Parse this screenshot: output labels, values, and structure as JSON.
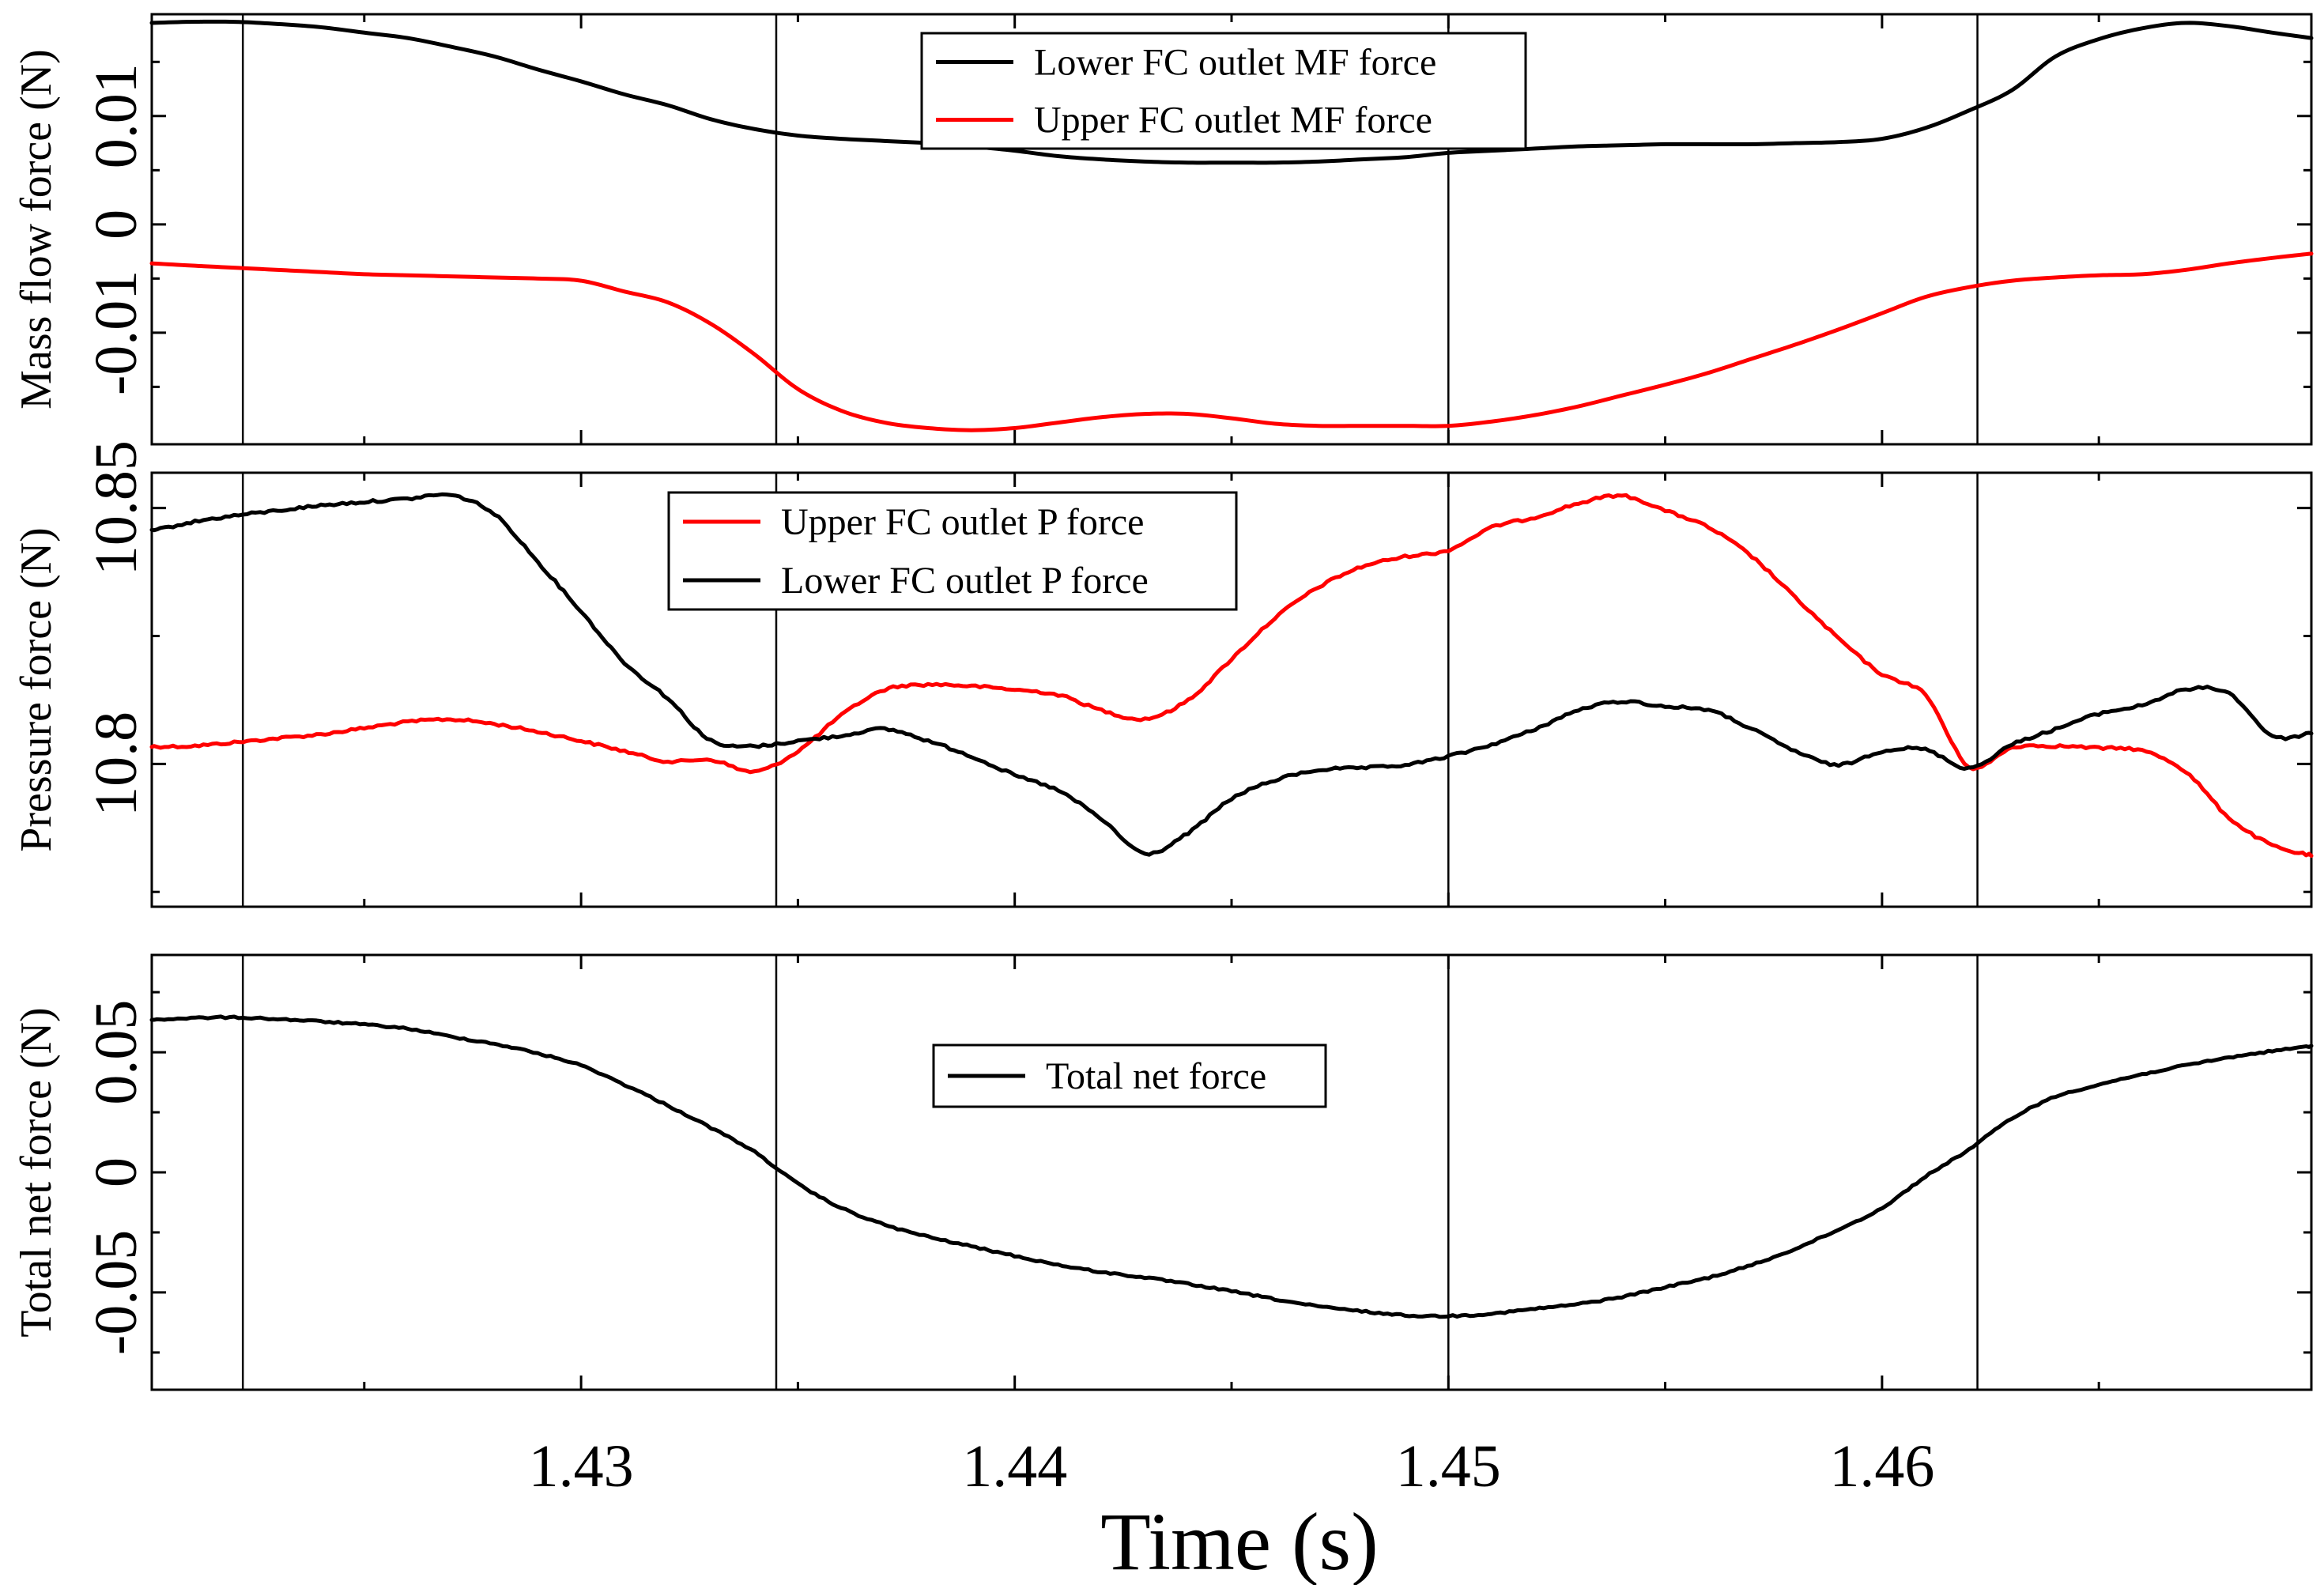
{
  "chart_data": {
    "type": "line",
    "xlabel": "Time (s)",
    "xlim": [
      1.4201,
      1.4699
    ],
    "xticks_major": [
      1.43,
      1.44,
      1.45,
      1.46
    ],
    "xtick_labels": [
      "1.43",
      "1.44",
      "1.45",
      "1.46"
    ],
    "xticks_minor": [
      1.425,
      1.435,
      1.445,
      1.455,
      1.465
    ],
    "event_lines_x": [
      1.4222,
      1.4345,
      1.45,
      1.4622
    ],
    "colors": {
      "black": "#000000",
      "red": "#ff0000"
    },
    "panels": [
      {
        "id": "mass-flow",
        "ylabel": "Mass flow force (N)",
        "ylim": [
          -0.0203,
          0.0194
        ],
        "yticks_major": [
          -0.01,
          0,
          0.01
        ],
        "ytick_labels": [
          "-0.01",
          "0",
          "0.01"
        ],
        "yticks_minor": [
          -0.015,
          -0.005,
          0.005,
          0.015
        ],
        "legend": {
          "position": "top-center"
        },
        "series": [
          {
            "name": "Lower FC outlet MF force",
            "color": "#000000",
            "x": [
              1.4201,
              1.421,
              1.422,
              1.423,
              1.424,
              1.425,
              1.426,
              1.427,
              1.428,
              1.429,
              1.43,
              1.431,
              1.432,
              1.433,
              1.434,
              1.435,
              1.436,
              1.437,
              1.438,
              1.439,
              1.44,
              1.441,
              1.442,
              1.443,
              1.444,
              1.445,
              1.446,
              1.447,
              1.448,
              1.449,
              1.45,
              1.451,
              1.452,
              1.453,
              1.454,
              1.455,
              1.456,
              1.457,
              1.458,
              1.459,
              1.46,
              1.461,
              1.462,
              1.463,
              1.464,
              1.465,
              1.466,
              1.467,
              1.468,
              1.469,
              1.4699
            ],
            "y": [
              0.0186,
              0.0187,
              0.0187,
              0.0185,
              0.0182,
              0.0177,
              0.0172,
              0.0164,
              0.0155,
              0.0143,
              0.0132,
              0.012,
              0.011,
              0.0097,
              0.0088,
              0.0082,
              0.0079,
              0.0077,
              0.0075,
              0.0072,
              0.0068,
              0.0063,
              0.006,
              0.0058,
              0.0057,
              0.0057,
              0.0057,
              0.0058,
              0.006,
              0.0062,
              0.0066,
              0.0068,
              0.007,
              0.0072,
              0.0073,
              0.0074,
              0.0074,
              0.0074,
              0.0075,
              0.0076,
              0.0079,
              0.0089,
              0.0105,
              0.0124,
              0.0155,
              0.0171,
              0.0181,
              0.0186,
              0.0183,
              0.0177,
              0.0172
            ]
          },
          {
            "name": "Upper FC outlet MF force",
            "color": "#ff0000",
            "x": [
              1.4201,
              1.421,
              1.422,
              1.423,
              1.424,
              1.425,
              1.426,
              1.427,
              1.428,
              1.429,
              1.43,
              1.431,
              1.432,
              1.433,
              1.434,
              1.435,
              1.436,
              1.437,
              1.438,
              1.439,
              1.44,
              1.441,
              1.442,
              1.443,
              1.444,
              1.445,
              1.446,
              1.447,
              1.448,
              1.449,
              1.45,
              1.451,
              1.452,
              1.453,
              1.454,
              1.455,
              1.456,
              1.457,
              1.458,
              1.459,
              1.46,
              1.461,
              1.462,
              1.463,
              1.464,
              1.465,
              1.466,
              1.467,
              1.468,
              1.469,
              1.4699
            ],
            "y": [
              -0.0036,
              -0.0038,
              -0.004,
              -0.0042,
              -0.0044,
              -0.0046,
              -0.0047,
              -0.0048,
              -0.0049,
              -0.005,
              -0.0052,
              -0.0062,
              -0.0072,
              -0.0092,
              -0.012,
              -0.0152,
              -0.0172,
              -0.0183,
              -0.0188,
              -0.019,
              -0.0188,
              -0.0183,
              -0.0178,
              -0.0175,
              -0.0175,
              -0.0179,
              -0.0184,
              -0.0186,
              -0.0186,
              -0.0186,
              -0.0186,
              -0.0182,
              -0.0176,
              -0.0168,
              -0.0158,
              -0.0148,
              -0.0137,
              -0.0124,
              -0.0111,
              -0.0097,
              -0.0082,
              -0.0067,
              -0.0058,
              -0.0052,
              -0.0049,
              -0.0047,
              -0.0046,
              -0.0042,
              -0.0036,
              -0.0031,
              -0.0027
            ]
          }
        ]
      },
      {
        "id": "pressure",
        "ylabel": "Pressure force (N)",
        "ylim": [
          10.7721,
          10.8569
        ],
        "yticks_major": [
          10.8,
          10.85
        ],
        "ytick_labels": [
          "10.8",
          "10.85"
        ],
        "yticks_minor": [
          10.775,
          10.825
        ],
        "legend": {
          "position": "top-left"
        },
        "series": [
          {
            "name": "Upper FC outlet P force",
            "color": "#ff0000",
            "x": [
              1.4201,
              1.421,
              1.422,
              1.423,
              1.424,
              1.425,
              1.426,
              1.427,
              1.428,
              1.429,
              1.43,
              1.431,
              1.432,
              1.433,
              1.434,
              1.435,
              1.436,
              1.437,
              1.438,
              1.439,
              1.44,
              1.441,
              1.442,
              1.443,
              1.444,
              1.445,
              1.446,
              1.447,
              1.448,
              1.449,
              1.45,
              1.451,
              1.452,
              1.453,
              1.454,
              1.455,
              1.456,
              1.457,
              1.458,
              1.459,
              1.46,
              1.461,
              1.462,
              1.463,
              1.464,
              1.465,
              1.466,
              1.467,
              1.468,
              1.469,
              1.4699
            ],
            "y": [
              10.8034,
              10.8035,
              10.8042,
              10.805,
              10.8058,
              10.807,
              10.8082,
              10.8087,
              10.8078,
              10.8063,
              10.8045,
              10.8025,
              10.8005,
              10.8008,
              10.7985,
              10.8025,
              10.8095,
              10.8145,
              10.8155,
              10.8152,
              10.8145,
              10.8135,
              10.8105,
              10.8088,
              10.8125,
              10.8205,
              10.8285,
              10.8345,
              10.8385,
              10.8405,
              10.8418,
              10.8462,
              10.8482,
              10.8509,
              10.8524,
              10.8495,
              10.8462,
              10.8405,
              10.8325,
              10.8245,
              10.8175,
              10.8135,
              10.7995,
              10.8032,
              10.8035,
              10.8031,
              10.8026,
              10.7985,
              10.7895,
              10.7841,
              10.7821
            ]
          },
          {
            "name": "Lower FC outlet P force",
            "color": "#000000",
            "x": [
              1.4201,
              1.421,
              1.422,
              1.423,
              1.424,
              1.425,
              1.426,
              1.427,
              1.428,
              1.429,
              1.43,
              1.431,
              1.432,
              1.433,
              1.434,
              1.435,
              1.436,
              1.437,
              1.438,
              1.439,
              1.44,
              1.441,
              1.442,
              1.443,
              1.444,
              1.445,
              1.446,
              1.447,
              1.448,
              1.449,
              1.45,
              1.451,
              1.452,
              1.453,
              1.454,
              1.455,
              1.456,
              1.457,
              1.458,
              1.459,
              1.46,
              1.461,
              1.462,
              1.463,
              1.464,
              1.465,
              1.466,
              1.467,
              1.468,
              1.469,
              1.4699
            ],
            "y": [
              10.8455,
              10.8472,
              10.8485,
              10.8495,
              10.8505,
              10.8512,
              10.8518,
              10.8525,
              10.8488,
              10.8395,
              10.8298,
              10.8198,
              10.8128,
              10.8045,
              10.8035,
              10.8045,
              10.8055,
              10.8068,
              10.8045,
              10.8015,
              10.7978,
              10.7948,
              10.7892,
              10.7825,
              10.7865,
              10.7932,
              10.7968,
              10.7988,
              10.7992,
              10.7998,
              10.8015,
              10.8038,
              10.8068,
              10.8105,
              10.8122,
              10.8112,
              10.8105,
              10.8068,
              10.8025,
              10.7998,
              10.8025,
              10.8028,
              10.7992,
              10.8038,
              10.8068,
              10.8098,
              10.8115,
              10.8145,
              10.8138,
              10.8055,
              10.8061
            ]
          }
        ]
      },
      {
        "id": "total",
        "ylabel": "Total net force (N)",
        "ylim": [
          -0.0905,
          0.0905
        ],
        "yticks_major": [
          -0.05,
          0,
          0.05
        ],
        "ytick_labels": [
          "-0.05",
          "0",
          "0.05"
        ],
        "yticks_minor": [
          -0.075,
          -0.025,
          0.025,
          0.075
        ],
        "legend": {
          "position": "center"
        },
        "series": [
          {
            "name": "Total net force",
            "color": "#000000",
            "x": [
              1.4201,
              1.421,
              1.422,
              1.423,
              1.424,
              1.425,
              1.426,
              1.427,
              1.428,
              1.429,
              1.43,
              1.431,
              1.432,
              1.433,
              1.434,
              1.435,
              1.436,
              1.437,
              1.438,
              1.439,
              1.44,
              1.441,
              1.442,
              1.443,
              1.444,
              1.445,
              1.446,
              1.447,
              1.448,
              1.449,
              1.45,
              1.451,
              1.452,
              1.453,
              1.454,
              1.455,
              1.456,
              1.457,
              1.458,
              1.459,
              1.46,
              1.461,
              1.462,
              1.463,
              1.464,
              1.465,
              1.466,
              1.467,
              1.468,
              1.469,
              1.4699
            ],
            "y": [
              0.0635,
              0.0642,
              0.0645,
              0.0638,
              0.0628,
              0.0615,
              0.0598,
              0.0565,
              0.0535,
              0.0495,
              0.0445,
              0.0365,
              0.0278,
              0.0185,
              0.0085,
              -0.0048,
              -0.0148,
              -0.0218,
              -0.0268,
              -0.0308,
              -0.0348,
              -0.0385,
              -0.0415,
              -0.0438,
              -0.0465,
              -0.0495,
              -0.0528,
              -0.0558,
              -0.0578,
              -0.0595,
              -0.0598,
              -0.0588,
              -0.0568,
              -0.0548,
              -0.0518,
              -0.0478,
              -0.0438,
              -0.0385,
              -0.0318,
              -0.0238,
              -0.0148,
              -0.0018,
              0.0095,
              0.0225,
              0.0315,
              0.0365,
              0.0408,
              0.0445,
              0.0478,
              0.0505,
              0.0525
            ]
          }
        ]
      }
    ]
  }
}
